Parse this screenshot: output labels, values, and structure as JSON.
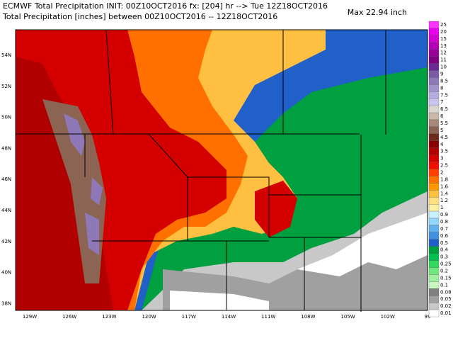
{
  "header": {
    "line1": "ECMWF Total Precipitation INIT: 00Z10OCT2016 fx: [204] hr --> Tue 12Z18OCT2016",
    "line2": "Total Precipitation [inches] between 00Z10OCT2016 -- 12Z18OCT2016",
    "max": "Max 22.94 inch"
  },
  "map": {
    "lat_labels": [
      "54N",
      "52N",
      "50N",
      "48N",
      "46N",
      "44N",
      "42N",
      "40N",
      "38N"
    ],
    "lon_labels": [
      "129W",
      "126W",
      "123W",
      "120W",
      "117W",
      "114W",
      "111W",
      "108W",
      "105W",
      "102W",
      "99"
    ]
  },
  "colorbar": {
    "levels": [
      {
        "label": "25",
        "color": "#ff33ff"
      },
      {
        "label": "20",
        "color": "#ea00ea"
      },
      {
        "label": "15",
        "color": "#d200d2"
      },
      {
        "label": "13",
        "color": "#b400b4"
      },
      {
        "label": "12",
        "color": "#980098"
      },
      {
        "label": "11",
        "color": "#7e007e"
      },
      {
        "label": "10",
        "color": "#6a2a96"
      },
      {
        "label": "9",
        "color": "#7b5aa6"
      },
      {
        "label": "8.5",
        "color": "#8e78b8"
      },
      {
        "label": "8",
        "color": "#a094cb"
      },
      {
        "label": "7.5",
        "color": "#b4ade0"
      },
      {
        "label": "7",
        "color": "#c8c4ee"
      },
      {
        "label": "6.5",
        "color": "#dcd6d0"
      },
      {
        "label": "6",
        "color": "#c8b8a8"
      },
      {
        "label": "5.5",
        "color": "#a88878"
      },
      {
        "label": "5",
        "color": "#8c6454"
      },
      {
        "label": "4.5",
        "color": "#6e2a1a"
      },
      {
        "label": "4",
        "color": "#8a0000"
      },
      {
        "label": "3.5",
        "color": "#b00000"
      },
      {
        "label": "3",
        "color": "#d40000"
      },
      {
        "label": "2.5",
        "color": "#f01000"
      },
      {
        "label": "2",
        "color": "#ff4000"
      },
      {
        "label": "1.8",
        "color": "#ff7000"
      },
      {
        "label": "1.6",
        "color": "#ff9800"
      },
      {
        "label": "1.4",
        "color": "#ffbf40"
      },
      {
        "label": "1.2",
        "color": "#ffdf80"
      },
      {
        "label": "1",
        "color": "#fff0a0"
      },
      {
        "label": "0.9",
        "color": "#c8f0ff"
      },
      {
        "label": "0.8",
        "color": "#90d8ff"
      },
      {
        "label": "0.7",
        "color": "#60b0f0"
      },
      {
        "label": "0.6",
        "color": "#4090e0"
      },
      {
        "label": "0.5",
        "color": "#2060c8"
      },
      {
        "label": "0.4",
        "color": "#00a040"
      },
      {
        "label": "0.3",
        "color": "#00c050"
      },
      {
        "label": "0.25",
        "color": "#30d860"
      },
      {
        "label": "0.2",
        "color": "#70e880"
      },
      {
        "label": "0.15",
        "color": "#a0f0a0"
      },
      {
        "label": "0.1",
        "color": "#c8f8c0"
      },
      {
        "label": "0.08",
        "color": "#808080"
      },
      {
        "label": "0.05",
        "color": "#a0a0a0"
      },
      {
        "label": "0.02",
        "color": "#c8c8c8"
      },
      {
        "label": "0.01",
        "color": "#ffffff"
      }
    ]
  }
}
